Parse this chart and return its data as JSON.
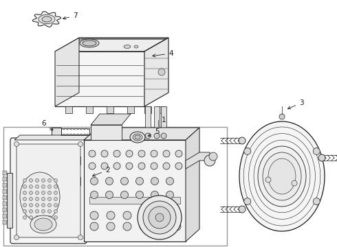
{
  "bg": "#ffffff",
  "lc": "#1a1a1a",
  "gray1": "#f0f0f0",
  "gray2": "#e0e0e0",
  "gray3": "#cccccc",
  "gray4": "#b0b0b0",
  "box_border": "#888888",
  "fig_w": 4.9,
  "fig_h": 3.6,
  "dpi": 100,
  "xlim": [
    0,
    490
  ],
  "ylim": [
    0,
    360
  ]
}
